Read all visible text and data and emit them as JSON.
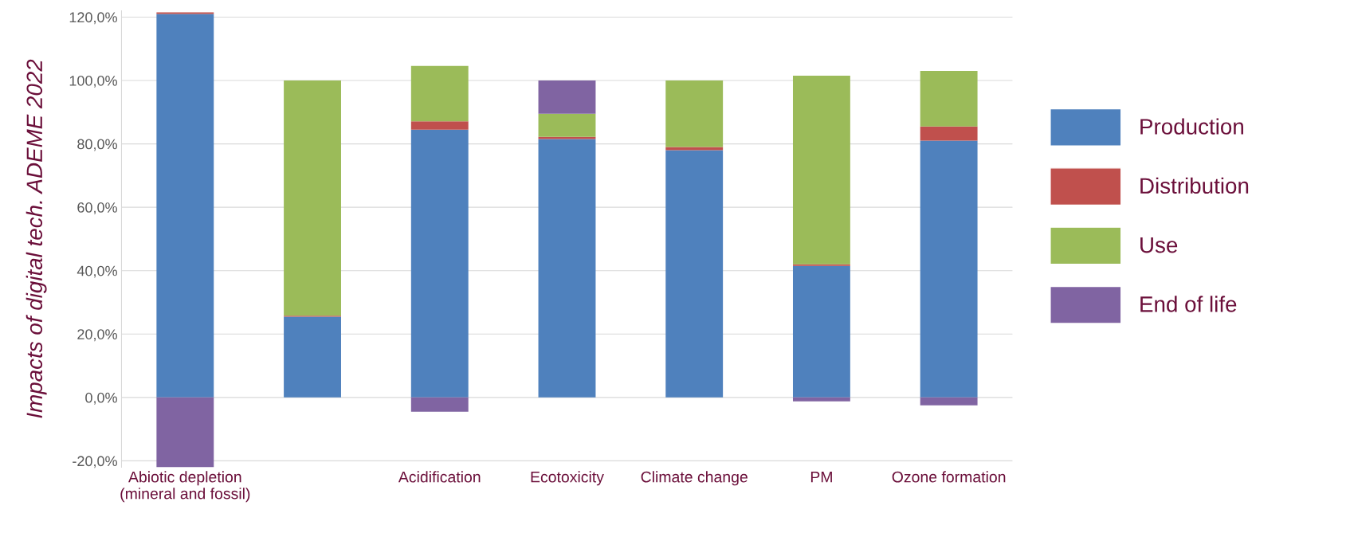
{
  "chart_data": {
    "type": "bar",
    "stacked": true,
    "ylabel": "Impacts of digital tech. ADEME 2022",
    "categories": [
      "Abiotic depletion\n(mineral and fossil)",
      null,
      "Acidification",
      "Ecotoxicity",
      "Climate change",
      "PM",
      "Ozone formation"
    ],
    "series": [
      {
        "name": "Production",
        "color": "#4f81bd",
        "values": [
          121,
          25.5,
          84.5,
          81.5,
          78,
          41.5,
          81
        ]
      },
      {
        "name": "Distribution",
        "color": "#c0504d",
        "values": [
          0.5,
          0.3,
          2.6,
          0.7,
          1,
          0.5,
          4.5
        ]
      },
      {
        "name": "Use",
        "color": "#9bbb59",
        "values": [
          null,
          74.2,
          17.5,
          7.3,
          21,
          59.5,
          17.5
        ]
      },
      {
        "name": "End of life",
        "color": "#8064a2",
        "values": [
          -22,
          0,
          -4.5,
          10.5,
          0,
          -1.2,
          -2.5
        ]
      }
    ],
    "ylim": [
      -22,
      122
    ],
    "yticks": [
      {
        "value": -20,
        "label": "-20,0%"
      },
      {
        "value": 0,
        "label": "0,0%"
      },
      {
        "value": 20,
        "label": "20,0%"
      },
      {
        "value": 40,
        "label": "40,0%"
      },
      {
        "value": 60,
        "label": "60,0%"
      },
      {
        "value": 80,
        "label": "80,0%"
      },
      {
        "value": 100,
        "label": "100,0%"
      },
      {
        "value": 120,
        "label": "120,0%"
      }
    ],
    "grid": "y",
    "legend": "right"
  }
}
